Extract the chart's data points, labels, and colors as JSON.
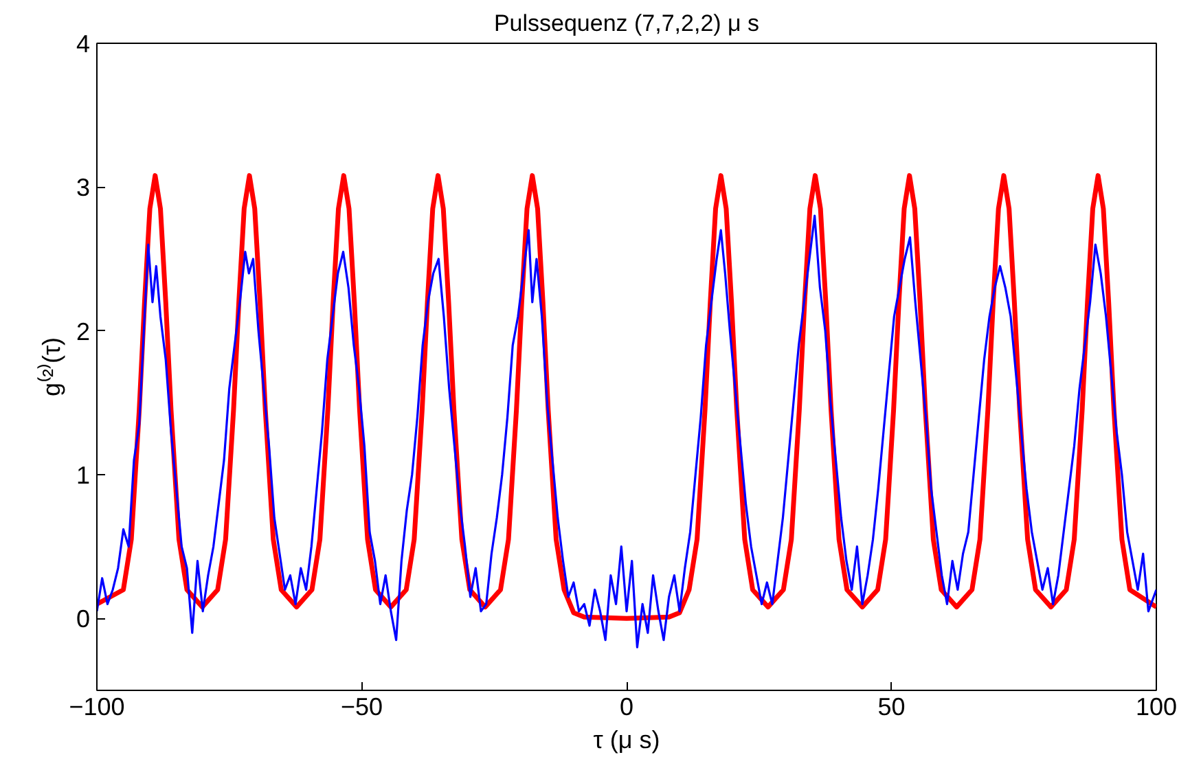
{
  "chart_data": {
    "type": "line",
    "title": "Pulssequenz (7,7,2,2) μ s",
    "xlabel": "τ (μ s)",
    "ylabel": "g⁽²⁾(τ)",
    "xlim": [
      -100,
      100
    ],
    "ylim": [
      -0.5,
      4
    ],
    "xticks": [
      -100,
      -50,
      0,
      50,
      100
    ],
    "yticks": [
      0,
      1,
      2,
      3,
      4
    ],
    "grid": false,
    "line_style": "solid",
    "marker": "none",
    "series": [
      {
        "color": "#0000ff",
        "x": [
          -100,
          -99,
          -98,
          -97,
          -96,
          -95,
          -94,
          -93,
          -92,
          -91,
          -90.3,
          -89.5,
          -88.8,
          -88,
          -87,
          -86,
          -85,
          -84,
          -83,
          -82,
          -81,
          -80,
          -79,
          -78,
          -77,
          -76,
          -75,
          -74,
          -73,
          -72,
          -71.3,
          -70.5,
          -69.5,
          -68.5,
          -67.5,
          -66.5,
          -65.5,
          -64.5,
          -63.5,
          -62.5,
          -61.5,
          -60.5,
          -59.5,
          -58.5,
          -57.5,
          -56.5,
          -55.5,
          -54.5,
          -53.5,
          -52.5,
          -51.5,
          -50.5,
          -49.5,
          -48.5,
          -47.5,
          -46.5,
          -45.5,
          -44.5,
          -43.5,
          -42.5,
          -41.5,
          -40.5,
          -39.5,
          -38.5,
          -37.5,
          -36.5,
          -35.5,
          -34.5,
          -33.5,
          -32.5,
          -31.5,
          -30.5,
          -29.5,
          -28.5,
          -27.5,
          -26.5,
          -25.5,
          -24.5,
          -23.5,
          -22.5,
          -21.5,
          -20.5,
          -19.5,
          -18.5,
          -17.8,
          -17,
          -16,
          -15,
          -14,
          -13,
          -12,
          -11,
          -10,
          -9,
          -8,
          -7,
          -6,
          -5,
          -4,
          -3,
          -2,
          -1,
          0,
          1,
          2,
          3,
          4,
          5,
          6,
          7,
          8,
          9,
          10,
          11,
          12,
          13,
          14,
          15,
          16,
          17,
          17.8,
          18.6,
          19.5,
          20.5,
          21.5,
          22.5,
          23.5,
          24.5,
          25.5,
          26.5,
          27.5,
          28.5,
          29.5,
          30.5,
          31.5,
          32.5,
          33.5,
          34.5,
          35.5,
          36.5,
          37.5,
          38.5,
          39.5,
          40.5,
          41.5,
          42.5,
          43.5,
          44.5,
          45.5,
          46.5,
          47.5,
          48.5,
          49.5,
          50.5,
          51.5,
          52.5,
          53.5,
          54.5,
          55.5,
          56.5,
          57.5,
          58.5,
          59.5,
          60.5,
          61.5,
          62.5,
          63.5,
          64.5,
          65.5,
          66.5,
          67.5,
          68.5,
          69.5,
          70.5,
          71.5,
          72.5,
          73.5,
          74.5,
          75.5,
          76.5,
          77.5,
          78.5,
          79.5,
          80.5,
          81.5,
          82.5,
          83.5,
          84.5,
          85.5,
          86.5,
          87.5,
          88.5,
          89.5,
          90.5,
          91.5,
          92.5,
          93.5,
          94.5,
          95.5,
          96.5,
          97.5,
          98.5,
          100
        ],
        "values": [
          0.05,
          0.28,
          0.1,
          0.2,
          0.35,
          0.62,
          0.5,
          1.1,
          1.35,
          2.1,
          2.6,
          2.2,
          2.45,
          2.1,
          1.8,
          1.3,
          0.9,
          0.5,
          0.35,
          -0.1,
          0.4,
          0.05,
          0.3,
          0.5,
          0.8,
          1.1,
          1.6,
          1.9,
          2.2,
          2.55,
          2.4,
          2.5,
          2.0,
          1.6,
          1.2,
          0.7,
          0.45,
          0.2,
          0.3,
          0.1,
          0.35,
          0.2,
          0.5,
          0.9,
          1.3,
          1.8,
          2.1,
          2.4,
          2.55,
          2.3,
          1.9,
          1.6,
          1.2,
          0.6,
          0.4,
          0.1,
          0.3,
          0.05,
          -0.15,
          0.4,
          0.75,
          1.0,
          1.4,
          1.9,
          2.2,
          2.4,
          2.5,
          2.1,
          1.6,
          1.2,
          0.8,
          0.5,
          0.15,
          0.35,
          0.05,
          0.1,
          0.45,
          0.7,
          1.0,
          1.4,
          1.9,
          2.1,
          2.4,
          2.7,
          2.2,
          2.5,
          2.1,
          1.5,
          1.1,
          0.7,
          0.4,
          0.15,
          0.25,
          0.05,
          0.1,
          -0.05,
          0.2,
          0.05,
          -0.15,
          0.3,
          0.1,
          0.5,
          0.05,
          0.4,
          -0.2,
          0.1,
          -0.1,
          0.3,
          0.05,
          -0.15,
          0.15,
          0.3,
          0.05,
          0.35,
          0.6,
          1.0,
          1.4,
          1.9,
          2.2,
          2.5,
          2.7,
          2.4,
          2.0,
          1.6,
          1.2,
          0.8,
          0.5,
          0.3,
          0.1,
          0.25,
          0.1,
          0.4,
          0.7,
          1.1,
          1.5,
          1.9,
          2.2,
          2.5,
          2.8,
          2.3,
          2.0,
          1.5,
          1.1,
          0.7,
          0.4,
          0.2,
          0.5,
          0.1,
          0.3,
          0.55,
          0.9,
          1.3,
          1.7,
          2.1,
          2.3,
          2.5,
          2.65,
          2.2,
          1.8,
          1.4,
          0.9,
          0.6,
          0.3,
          0.1,
          0.4,
          0.2,
          0.45,
          0.6,
          1.0,
          1.4,
          1.8,
          2.1,
          2.3,
          2.45,
          2.3,
          2.1,
          1.7,
          1.3,
          0.9,
          0.6,
          0.4,
          0.2,
          0.35,
          0.1,
          0.3,
          0.6,
          0.9,
          1.2,
          1.6,
          1.9,
          2.2,
          2.6,
          2.4,
          2.1,
          1.7,
          1.3,
          1.0,
          0.6,
          0.4,
          0.2,
          0.45,
          0.05,
          0.2
        ]
      },
      {
        "color": "#ff0000",
        "x": [
          -100,
          -95,
          -93.5,
          -92,
          -91,
          -90,
          -89,
          -88,
          -87,
          -86,
          -84.5,
          -83,
          -80.1,
          -77.2,
          -75.7,
          -74.2,
          -73.2,
          -72.2,
          -71.2,
          -70.2,
          -69.2,
          -68.2,
          -66.7,
          -65.2,
          -62.3,
          -59.4,
          -57.9,
          -56.4,
          -55.4,
          -54.4,
          -53.4,
          -52.4,
          -51.4,
          -50.4,
          -48.9,
          -47.4,
          -44.5,
          -41.6,
          -40.1,
          -38.6,
          -37.6,
          -36.6,
          -35.6,
          -34.6,
          -33.6,
          -32.6,
          -31.1,
          -29.6,
          -26.7,
          -23.8,
          -22.3,
          -20.8,
          -19.8,
          -18.8,
          -17.8,
          -16.8,
          -15.8,
          -14.8,
          -13.3,
          -11.8,
          -10,
          -8,
          0,
          8,
          10,
          11.8,
          13.3,
          14.8,
          15.8,
          16.8,
          17.8,
          18.8,
          19.8,
          20.8,
          22.3,
          23.8,
          26.7,
          29.6,
          31.1,
          32.6,
          33.6,
          34.6,
          35.6,
          36.6,
          37.6,
          38.6,
          40.1,
          41.6,
          44.5,
          47.4,
          48.9,
          50.4,
          51.4,
          52.4,
          53.4,
          54.4,
          55.4,
          56.4,
          57.9,
          59.4,
          62.3,
          65.2,
          66.7,
          68.2,
          69.2,
          70.2,
          71.2,
          72.2,
          73.2,
          74.2,
          75.7,
          77.2,
          80.1,
          83,
          84.5,
          86,
          87,
          88,
          89,
          90,
          91,
          92,
          93.5,
          95,
          100
        ],
        "values": [
          0.1,
          0.2,
          0.55,
          1.45,
          2.2,
          2.85,
          3.08,
          2.85,
          2.2,
          1.45,
          0.55,
          0.2,
          0.08,
          0.2,
          0.55,
          1.45,
          2.2,
          2.85,
          3.08,
          2.85,
          2.2,
          1.45,
          0.55,
          0.2,
          0.08,
          0.2,
          0.55,
          1.45,
          2.2,
          2.85,
          3.08,
          2.85,
          2.2,
          1.45,
          0.55,
          0.2,
          0.08,
          0.2,
          0.55,
          1.45,
          2.2,
          2.85,
          3.08,
          2.85,
          2.2,
          1.45,
          0.55,
          0.2,
          0.08,
          0.2,
          0.55,
          1.45,
          2.2,
          2.85,
          3.08,
          2.85,
          2.2,
          1.45,
          0.55,
          0.2,
          0.04,
          0.01,
          0,
          0.01,
          0.04,
          0.2,
          0.55,
          1.45,
          2.2,
          2.85,
          3.08,
          2.85,
          2.2,
          1.45,
          0.55,
          0.2,
          0.08,
          0.2,
          0.55,
          1.45,
          2.2,
          2.85,
          3.08,
          2.85,
          2.2,
          1.45,
          0.55,
          0.2,
          0.08,
          0.2,
          0.55,
          1.45,
          2.2,
          2.85,
          3.08,
          2.85,
          2.2,
          1.45,
          0.55,
          0.2,
          0.08,
          0.2,
          0.55,
          1.45,
          2.2,
          2.85,
          3.08,
          2.85,
          2.2,
          1.45,
          0.55,
          0.2,
          0.08,
          0.2,
          0.55,
          1.45,
          2.2,
          2.85,
          3.08,
          2.85,
          2.2,
          1.45,
          0.55,
          0.2,
          0.08
        ]
      }
    ]
  }
}
